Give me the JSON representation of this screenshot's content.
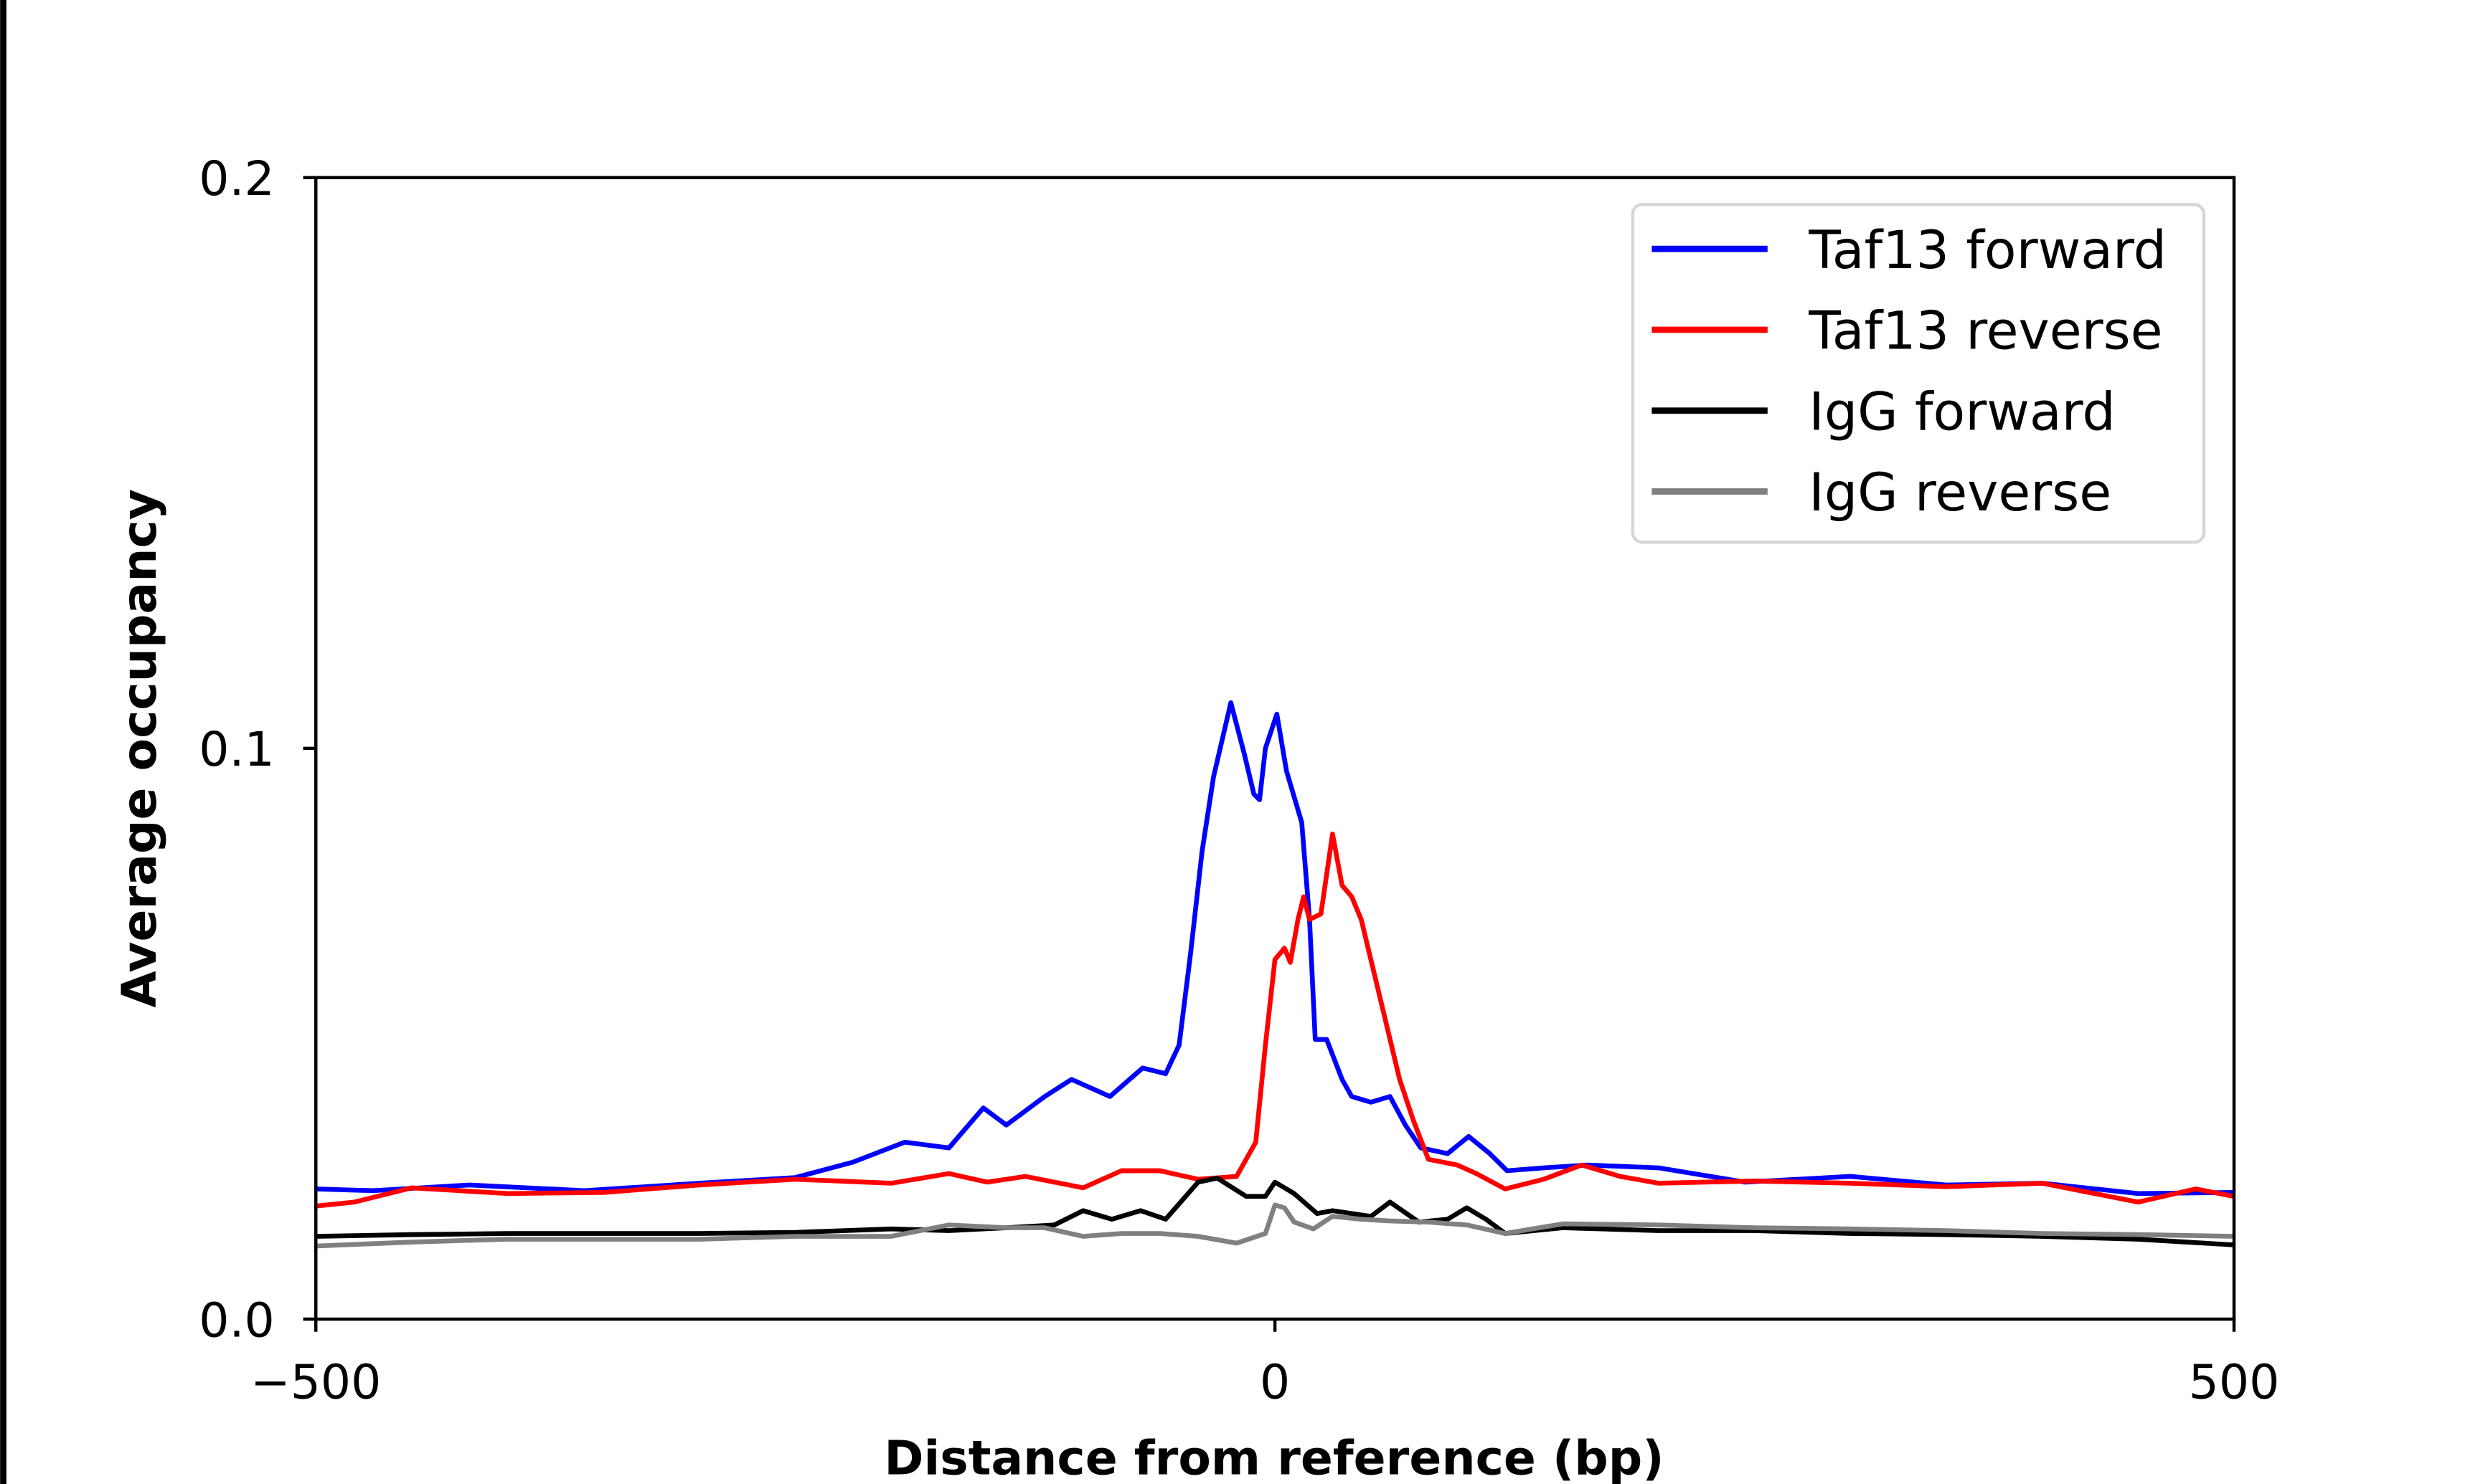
{
  "chart_data": {
    "type": "line",
    "title": "",
    "xlabel": "Distance from reference (bp)",
    "ylabel": "Average occupancy",
    "xlim": [
      -500,
      500
    ],
    "ylim": [
      0.0,
      0.2
    ],
    "xticks": [
      -500,
      0,
      500
    ],
    "xtick_labels": [
      "−500",
      "0",
      "500"
    ],
    "yticks": [
      0.0,
      0.1,
      0.2
    ],
    "ytick_labels": [
      "0.0",
      "0.1",
      "0.2"
    ],
    "grid": false,
    "legend_position": "top-right",
    "series": [
      {
        "name": "Taf13 forward",
        "color": "#0000ff",
        "x": [
          -500,
          -470,
          -420,
          -360,
          -300,
          -250,
          -220,
          -193,
          -170,
          -152,
          -140,
          -120,
          -106,
          -86,
          -69,
          -57,
          -50,
          -44,
          -38,
          -32,
          -23,
          -16,
          -11,
          -8,
          -5,
          1,
          6,
          14,
          18,
          21,
          27,
          35,
          40,
          50,
          60,
          68,
          76,
          90,
          101,
          112,
          121,
          140,
          163,
          200,
          245,
          300,
          350,
          400,
          450,
          500
        ],
        "y": [
          0.0228,
          0.0225,
          0.0235,
          0.0225,
          0.0238,
          0.0248,
          0.0275,
          0.031,
          0.03,
          0.037,
          0.034,
          0.039,
          0.042,
          0.039,
          0.044,
          0.043,
          0.048,
          0.064,
          0.082,
          0.095,
          0.108,
          0.099,
          0.092,
          0.091,
          0.1,
          0.106,
          0.096,
          0.087,
          0.07,
          0.049,
          0.049,
          0.042,
          0.039,
          0.038,
          0.039,
          0.034,
          0.03,
          0.029,
          0.032,
          0.029,
          0.026,
          0.0265,
          0.027,
          0.0265,
          0.024,
          0.025,
          0.0235,
          0.0238,
          0.022,
          0.0222
        ]
      },
      {
        "name": "Taf13 reverse",
        "color": "#ff0000",
        "x": [
          -500,
          -480,
          -450,
          -400,
          -350,
          -300,
          -250,
          -200,
          -170,
          -150,
          -130,
          -100,
          -80,
          -60,
          -40,
          -20,
          -10,
          -5,
          0,
          5,
          8,
          12,
          15,
          18,
          24,
          30,
          35,
          40,
          45,
          55,
          65,
          72,
          80,
          95,
          105,
          120,
          140,
          160,
          180,
          200,
          250,
          300,
          350,
          400,
          450,
          480,
          500
        ],
        "y": [
          0.0198,
          0.0205,
          0.023,
          0.022,
          0.0222,
          0.0235,
          0.0245,
          0.0238,
          0.0255,
          0.024,
          0.025,
          0.023,
          0.026,
          0.026,
          0.0245,
          0.025,
          0.031,
          0.048,
          0.063,
          0.065,
          0.0625,
          0.07,
          0.074,
          0.07,
          0.071,
          0.085,
          0.076,
          0.074,
          0.07,
          0.056,
          0.042,
          0.035,
          0.028,
          0.027,
          0.0255,
          0.0228,
          0.0245,
          0.027,
          0.025,
          0.0238,
          0.0242,
          0.0238,
          0.0232,
          0.0238,
          0.0205,
          0.0228,
          0.0215
        ]
      },
      {
        "name": "IgG forward",
        "color": "#000000",
        "x": [
          -500,
          -450,
          -400,
          -300,
          -250,
          -200,
          -170,
          -140,
          -115,
          -100,
          -85,
          -70,
          -57,
          -40,
          -30,
          -15,
          -5,
          0,
          10,
          22,
          30,
          50,
          60,
          75,
          90,
          100,
          110,
          120,
          150,
          200,
          250,
          300,
          350,
          400,
          450,
          500
        ],
        "y": [
          0.0145,
          0.0148,
          0.015,
          0.015,
          0.0152,
          0.0158,
          0.0155,
          0.016,
          0.0165,
          0.019,
          0.0175,
          0.019,
          0.0175,
          0.024,
          0.0247,
          0.0215,
          0.0215,
          0.024,
          0.022,
          0.0185,
          0.019,
          0.018,
          0.0205,
          0.017,
          0.0175,
          0.0195,
          0.0175,
          0.015,
          0.016,
          0.0155,
          0.0155,
          0.015,
          0.0148,
          0.0145,
          0.014,
          0.013
        ]
      },
      {
        "name": "IgG reverse",
        "color": "#808080",
        "x": [
          -500,
          -450,
          -400,
          -300,
          -250,
          -200,
          -170,
          -140,
          -120,
          -100,
          -80,
          -60,
          -40,
          -20,
          -5,
          0,
          5,
          10,
          20,
          30,
          45,
          60,
          80,
          100,
          120,
          150,
          200,
          250,
          300,
          350,
          400,
          450,
          500
        ],
        "y": [
          0.0128,
          0.0135,
          0.014,
          0.014,
          0.0145,
          0.0145,
          0.0165,
          0.016,
          0.016,
          0.0145,
          0.015,
          0.015,
          0.0145,
          0.0133,
          0.015,
          0.02,
          0.0195,
          0.017,
          0.0158,
          0.018,
          0.0175,
          0.0172,
          0.017,
          0.0165,
          0.015,
          0.0167,
          0.0165,
          0.016,
          0.0158,
          0.0155,
          0.015,
          0.0148,
          0.0145
        ]
      }
    ]
  }
}
